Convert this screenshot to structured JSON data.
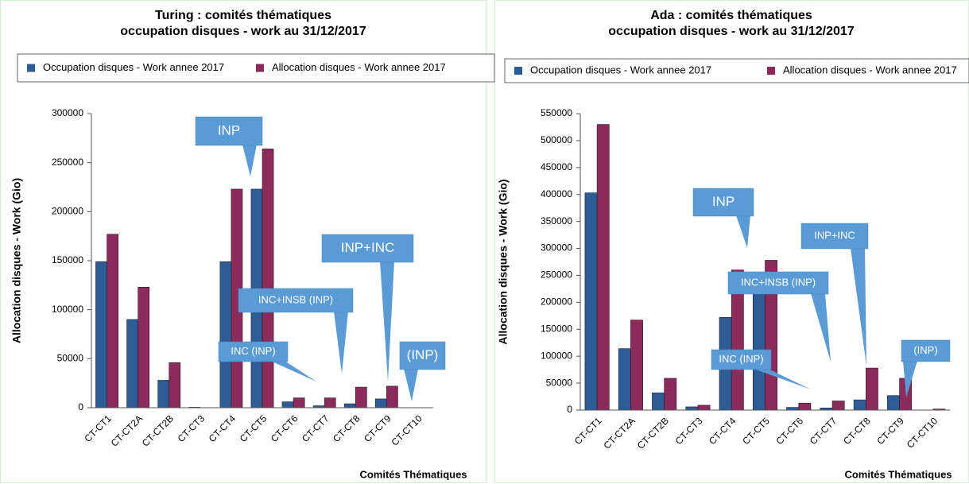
{
  "chart_data": [
    {
      "type": "bar",
      "title": "Turing : comités thématiques",
      "subtitle": "occupation disques - work au 31/12/2017",
      "xlabel": "Comités Thématiques",
      "ylabel": "Allocation disques - Work (Gio)",
      "categories": [
        "CT-CT1",
        "CT-CT2A",
        "CT-CT2B",
        "CT-CT3",
        "CT-CT4",
        "CT-CT5",
        "CT-CT6",
        "CT-CT7",
        "CT-CT8",
        "CT-CT9",
        "CT-CT10"
      ],
      "series": [
        {
          "name": "Occupation disques - Work annee 2017",
          "color": "#2e5c96",
          "values": [
            149000,
            90000,
            28000,
            500,
            149000,
            223000,
            6000,
            2000,
            4000,
            9000,
            0
          ]
        },
        {
          "name": "Allocation disques - Work annee 2017",
          "color": "#8b2a5b",
          "values": [
            177000,
            123000,
            46000,
            0,
            223000,
            264000,
            10000,
            10000,
            21000,
            22000,
            0
          ]
        }
      ],
      "ylim": [
        0,
        300000
      ],
      "yticks": [
        0,
        50000,
        100000,
        150000,
        200000,
        250000,
        300000
      ],
      "annotations": [
        "INP",
        "INP+INC",
        "INC+INSB (INP)",
        "INC (INP)",
        "(INP)"
      ]
    },
    {
      "type": "bar",
      "title": "Ada : comités thématiques",
      "subtitle": "occupation disques - work au 31/12/2017",
      "xlabel": "Comités Thématiques",
      "ylabel": "Allocation disques - Work (Gio)",
      "categories": [
        "CT-CT1",
        "CT-CT2A",
        "CT-CT2B",
        "CT-CT3",
        "CT-CT4",
        "CT-CT5",
        "CT-CT6",
        "CT-CT7",
        "CT-CT8",
        "CT-CT9",
        "CT-CT10"
      ],
      "series": [
        {
          "name": "Occupation disques - Work annee 2017",
          "color": "#2e5c96",
          "values": [
            403000,
            114000,
            32000,
            6000,
            172000,
            220000,
            5000,
            4000,
            19000,
            27000,
            0
          ]
        },
        {
          "name": "Allocation disques - Work annee 2017",
          "color": "#8b2a5b",
          "values": [
            530000,
            167000,
            59000,
            9000,
            260000,
            278000,
            13000,
            17000,
            78000,
            59000,
            2000
          ]
        }
      ],
      "ylim": [
        0,
        550000
      ],
      "yticks": [
        0,
        50000,
        100000,
        150000,
        200000,
        250000,
        300000,
        350000,
        400000,
        450000,
        500000,
        550000
      ],
      "annotations": [
        "INP",
        "INP+INC",
        "INC+INSB (INP)",
        "INC (INP)",
        "(INP)"
      ]
    }
  ]
}
